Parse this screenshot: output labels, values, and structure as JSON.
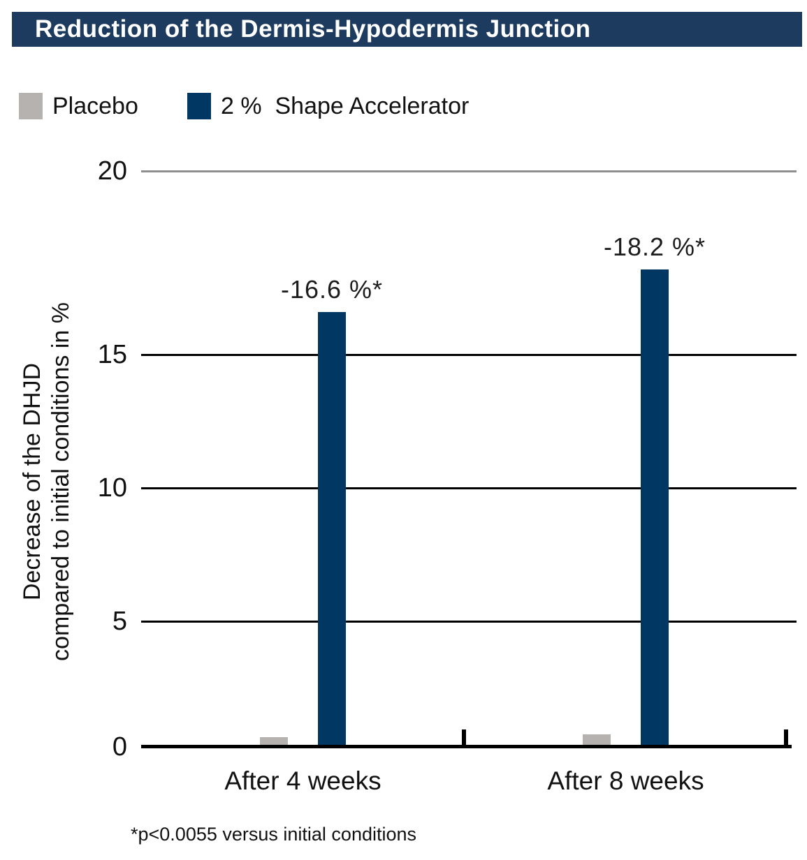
{
  "header": {
    "title": "Reduction of the Dermis-Hypodermis Junction"
  },
  "legend": [
    {
      "label": "Placebo",
      "color": "#b5b2b0"
    },
    {
      "label": "2 %  Shape Accelerator",
      "color": "#003763"
    }
  ],
  "chart_data": {
    "type": "bar",
    "title": "Reduction of the Dermis-Hypodermis Junction",
    "categories": [
      "After 4 weeks",
      "After 8 weeks"
    ],
    "series": [
      {
        "name": "Placebo",
        "color": "#b5b2b0",
        "values": [
          0.4,
          0.5
        ],
        "bar_labels": [
          "",
          ""
        ]
      },
      {
        "name": "2 % Shape Accelerator",
        "color": "#003763",
        "values": [
          16.6,
          18.2
        ],
        "bar_labels": [
          "-16.6 %*",
          "-18.2 %*"
        ]
      }
    ],
    "ylabel_line1": "Decrease of the DHJD",
    "ylabel_line2": "compared to initial conditions in %",
    "yticks": [
      0,
      5,
      10,
      15,
      20
    ],
    "ylim": [
      0,
      20
    ],
    "grid": "horizontal",
    "legend_position": "top-left",
    "footnote": "*p<0.0055 versus initial conditions"
  }
}
